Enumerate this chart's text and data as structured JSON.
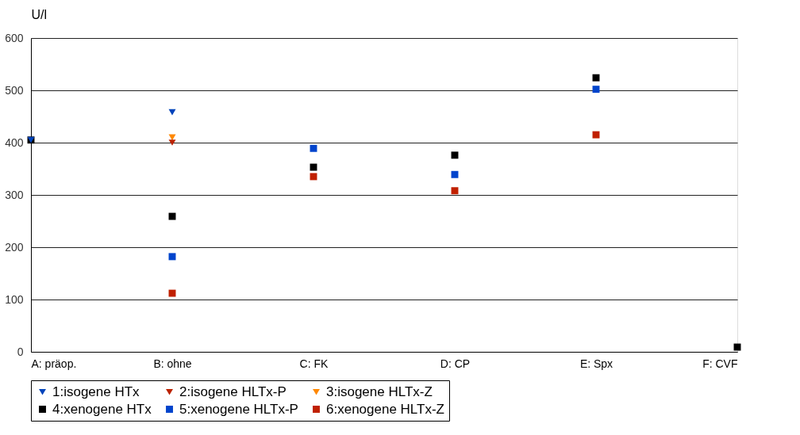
{
  "chart_data": {
    "type": "scatter",
    "ylabel": "U/l",
    "categories": [
      "A: präop.",
      "B: ohne",
      "C: FK",
      "D: CP",
      "E: Spx",
      "F: CVF"
    ],
    "ylim": [
      0,
      600
    ],
    "yticks": [
      0,
      100,
      200,
      300,
      400,
      500,
      600
    ],
    "grid": "y",
    "legend": "bottom",
    "series": [
      {
        "name": "1:isogene  HTx",
        "color": "#0044bb",
        "marker": "triangle",
        "values": [
          405,
          458,
          null,
          null,
          null,
          null
        ]
      },
      {
        "name": "2:isogene HLTx-P",
        "color": "#bb2200",
        "marker": "triangle",
        "values": [
          null,
          400,
          null,
          null,
          null,
          null
        ]
      },
      {
        "name": "3:isogene HLTx-Z",
        "color": "#ff8800",
        "marker": "triangle",
        "values": [
          null,
          410,
          null,
          null,
          null,
          null
        ]
      },
      {
        "name": "4:xenogene HTx",
        "color": "#000000",
        "marker": "square",
        "values": [
          405,
          259,
          353,
          376,
          524,
          9
        ]
      },
      {
        "name": "5:xenogene HLTx-P",
        "color": "#0044cc",
        "marker": "square",
        "values": [
          null,
          182,
          389,
          339,
          502,
          null
        ]
      },
      {
        "name": "6:xenogene HLTx-Z",
        "color": "#c02000",
        "marker": "square",
        "values": [
          null,
          112,
          335,
          308,
          415,
          null
        ]
      }
    ]
  }
}
